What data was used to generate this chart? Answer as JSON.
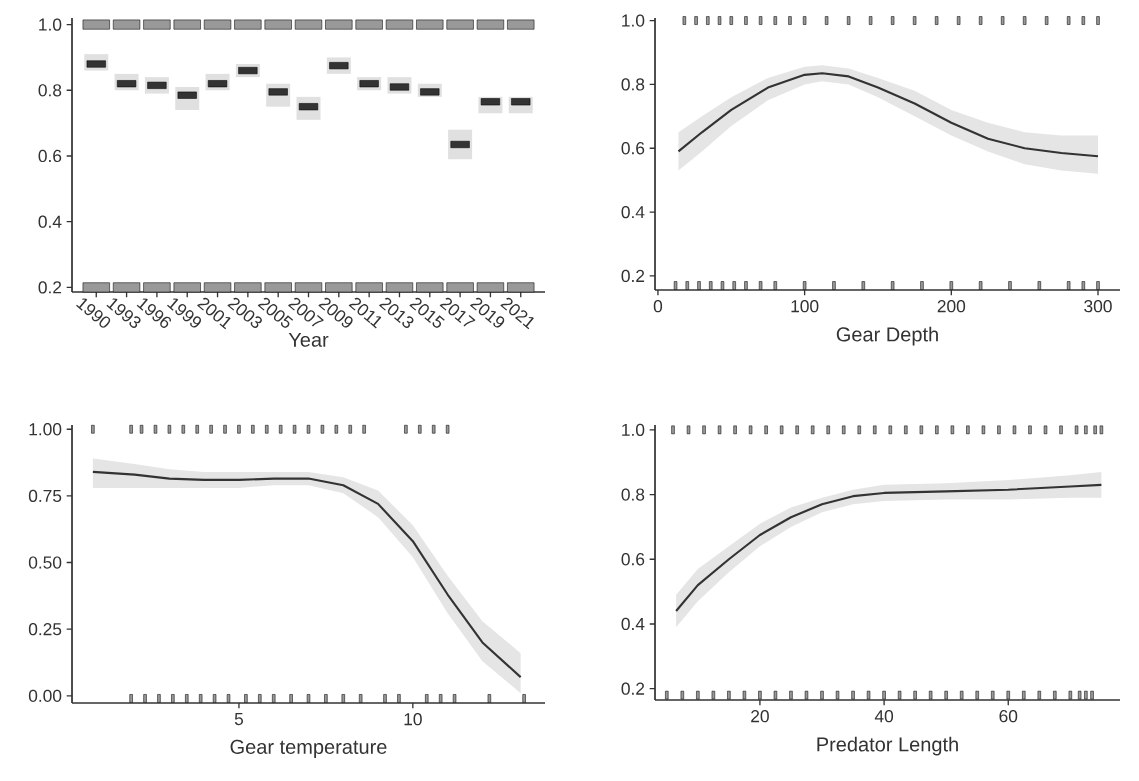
{
  "chart_data": [
    {
      "type": "scatter",
      "xlabel": "Year",
      "categories": [
        "1990",
        "1993",
        "1996",
        "1999",
        "2001",
        "2003",
        "2005",
        "2007",
        "2009",
        "2011",
        "2013",
        "2015",
        "2017",
        "2019",
        "2021"
      ],
      "ylim": [
        0.186,
        1.02
      ],
      "yticks": [
        {
          "value": 0.2,
          "label": "0.2"
        },
        {
          "value": 0.4,
          "label": "0.4"
        },
        {
          "value": 0.6,
          "label": "0.6"
        },
        {
          "value": 0.8,
          "label": "0.8"
        },
        {
          "value": 1,
          "label": "1.0"
        }
      ],
      "series": [
        {
          "color": "#333333",
          "values": [
            0.88,
            0.82,
            0.815,
            0.785,
            0.82,
            0.86,
            0.795,
            0.75,
            0.875,
            0.82,
            0.81,
            0.795,
            0.635,
            0.765,
            0.765
          ],
          "errors": [
            [
              0.86,
              0.91
            ],
            [
              0.8,
              0.85
            ],
            [
              0.79,
              0.84
            ],
            [
              0.74,
              0.81
            ],
            [
              0.8,
              0.85
            ],
            [
              0.84,
              0.88
            ],
            [
              0.75,
              0.82
            ],
            [
              0.71,
              0.78
            ],
            [
              0.85,
              0.9
            ],
            [
              0.8,
              0.84
            ],
            [
              0.79,
              0.84
            ],
            [
              0.78,
              0.82
            ],
            [
              0.59,
              0.68
            ],
            [
              0.73,
              0.78
            ],
            [
              0.73,
              0.78
            ]
          ]
        },
        {
          "type": "scatter",
          "color": "#999999",
          "values": [
            1,
            1,
            1,
            1,
            1,
            1,
            1,
            1,
            1,
            1,
            1,
            1,
            1,
            1,
            1
          ]
        },
        {
          "type": "scatter",
          "color": "#999999",
          "values": [
            0.2,
            0.2,
            0.2,
            0.2,
            0.2,
            0.2,
            0.2,
            0.2,
            0.2,
            0.2,
            0.2,
            0.2,
            0.2,
            0.2,
            0.2
          ]
        }
      ]
    },
    {
      "type": "line",
      "xlabel": "Gear Depth",
      "xlim": [
        -2,
        315
      ],
      "ylim": [
        0.156,
        1.008
      ],
      "xticks": [
        0,
        100,
        200,
        300
      ],
      "yticks": [
        {
          "value": 0.2,
          "label": "0.2"
        },
        {
          "value": 0.4,
          "label": "0.4"
        },
        {
          "value": 0.6,
          "label": "0.6"
        },
        {
          "value": 0.8,
          "label": "0.8"
        },
        {
          "value": 1,
          "label": "1.0"
        }
      ],
      "x": [
        14,
        30,
        50,
        75,
        100,
        112,
        130,
        150,
        175,
        200,
        225,
        250,
        275,
        300
      ],
      "series": [
        {
          "color": "#333333",
          "values": [
            0.59,
            0.65,
            0.72,
            0.79,
            0.83,
            0.835,
            0.825,
            0.79,
            0.74,
            0.68,
            0.63,
            0.6,
            0.585,
            0.575
          ],
          "lower": [
            0.53,
            0.59,
            0.67,
            0.75,
            0.8,
            0.81,
            0.8,
            0.76,
            0.7,
            0.64,
            0.59,
            0.55,
            0.53,
            0.52
          ],
          "upper": [
            0.65,
            0.7,
            0.76,
            0.82,
            0.855,
            0.86,
            0.85,
            0.82,
            0.78,
            0.72,
            0.68,
            0.65,
            0.64,
            0.64
          ]
        },
        {
          "type": "scatter",
          "color": "#999999",
          "x": [
            18,
            26,
            34,
            42,
            50,
            60,
            70,
            80,
            90,
            100,
            115,
            130,
            145,
            160,
            175,
            190,
            205,
            220,
            235,
            250,
            265,
            280,
            290,
            300
          ],
          "values": [
            1,
            1,
            1,
            1,
            1,
            1,
            1,
            1,
            1,
            1,
            1,
            1,
            1,
            1,
            1,
            1,
            1,
            1,
            1,
            1,
            1,
            1,
            1,
            1
          ]
        },
        {
          "type": "scatter",
          "color": "#999999",
          "x": [
            12,
            20,
            28,
            36,
            44,
            52,
            60,
            70,
            80,
            100,
            120,
            140,
            160,
            180,
            200,
            220,
            240,
            260,
            280,
            290,
            300
          ],
          "values": [
            0.17,
            0.17,
            0.17,
            0.17,
            0.17,
            0.17,
            0.17,
            0.17,
            0.17,
            0.17,
            0.17,
            0.17,
            0.17,
            0.17,
            0.17,
            0.17,
            0.17,
            0.17,
            0.17,
            0.17,
            0.17
          ]
        }
      ]
    },
    {
      "type": "line",
      "xlabel": "Gear temperature",
      "xlim": [
        0.2,
        13.8
      ],
      "ylim": [
        -0.027,
        1.016
      ],
      "xticks": [
        5,
        10
      ],
      "yticks": [
        {
          "value": 0,
          "label": "0.00"
        },
        {
          "value": 0.25,
          "label": "0.25"
        },
        {
          "value": 0.5,
          "label": "0.50"
        },
        {
          "value": 0.75,
          "label": "0.75"
        },
        {
          "value": 1,
          "label": "1.00"
        }
      ],
      "x": [
        0.8,
        2,
        3,
        4,
        5,
        6,
        7,
        8,
        9,
        10,
        11,
        12,
        13.1
      ],
      "series": [
        {
          "color": "#333333",
          "values": [
            0.84,
            0.83,
            0.815,
            0.81,
            0.81,
            0.815,
            0.815,
            0.79,
            0.72,
            0.58,
            0.38,
            0.2,
            0.07
          ],
          "lower": [
            0.78,
            0.78,
            0.78,
            0.78,
            0.78,
            0.79,
            0.79,
            0.76,
            0.67,
            0.52,
            0.31,
            0.13,
            0.01
          ],
          "upper": [
            0.89,
            0.87,
            0.85,
            0.84,
            0.84,
            0.84,
            0.84,
            0.82,
            0.77,
            0.64,
            0.45,
            0.28,
            0.16
          ]
        },
        {
          "type": "scatter",
          "color": "#999999",
          "x": [
            0.8,
            1.9,
            2.2,
            2.6,
            3.0,
            3.4,
            3.8,
            4.2,
            4.6,
            5.0,
            5.4,
            5.8,
            6.2,
            6.6,
            7.0,
            7.4,
            7.8,
            8.2,
            8.6,
            9.8,
            10.2,
            10.6,
            11.0
          ],
          "values": [
            1,
            1,
            1,
            1,
            1,
            1,
            1,
            1,
            1,
            1,
            1,
            1,
            1,
            1,
            1,
            1,
            1,
            1,
            1,
            1,
            1,
            1,
            1
          ]
        },
        {
          "type": "scatter",
          "color": "#999999",
          "x": [
            1.9,
            2.3,
            2.7,
            3.1,
            3.5,
            3.9,
            4.3,
            4.7,
            5.2,
            5.6,
            6.0,
            6.5,
            7.0,
            7.5,
            8.0,
            8.5,
            9.2,
            9.6,
            10.4,
            10.8,
            11.2,
            12.2,
            13.2
          ],
          "values": [
            -0.01,
            -0.01,
            -0.01,
            -0.01,
            -0.01,
            -0.01,
            -0.01,
            -0.01,
            -0.01,
            -0.01,
            -0.01,
            -0.01,
            -0.01,
            -0.01,
            -0.01,
            -0.01,
            -0.01,
            -0.01,
            -0.01,
            -0.01,
            -0.01,
            -0.01,
            -0.01
          ]
        }
      ]
    },
    {
      "type": "line",
      "xlabel": "Predator Length",
      "xlim": [
        3.1,
        78
      ],
      "ylim": [
        0.165,
        1.015
      ],
      "xticks": [
        20,
        40,
        60
      ],
      "yticks": [
        {
          "value": 0.2,
          "label": "0.2"
        },
        {
          "value": 0.4,
          "label": "0.4"
        },
        {
          "value": 0.6,
          "label": "0.6"
        },
        {
          "value": 0.8,
          "label": "0.8"
        },
        {
          "value": 1,
          "label": "1.0"
        }
      ],
      "x": [
        6.5,
        10,
        15,
        20,
        25,
        30,
        35,
        40,
        50,
        60,
        70,
        75
      ],
      "series": [
        {
          "color": "#333333",
          "values": [
            0.44,
            0.52,
            0.6,
            0.675,
            0.73,
            0.77,
            0.795,
            0.805,
            0.81,
            0.815,
            0.825,
            0.83
          ],
          "lower": [
            0.39,
            0.47,
            0.56,
            0.64,
            0.7,
            0.745,
            0.77,
            0.78,
            0.785,
            0.785,
            0.79,
            0.79
          ],
          "upper": [
            0.49,
            0.57,
            0.64,
            0.71,
            0.76,
            0.79,
            0.815,
            0.83,
            0.835,
            0.845,
            0.86,
            0.87
          ]
        },
        {
          "type": "scatter",
          "color": "#999999",
          "x": [
            6,
            8.5,
            11,
            13.5,
            16,
            18.5,
            21,
            23.5,
            26,
            28.5,
            31,
            33.5,
            36,
            38.5,
            41,
            43.5,
            46,
            48.5,
            51,
            53.5,
            56,
            58.5,
            61,
            63.5,
            66,
            68.5,
            71,
            72.5,
            74,
            75
          ],
          "values": [
            1,
            1,
            1,
            1,
            1,
            1,
            1,
            1,
            1,
            1,
            1,
            1,
            1,
            1,
            1,
            1,
            1,
            1,
            1,
            1,
            1,
            1,
            1,
            1,
            1,
            1,
            1,
            1,
            1,
            1
          ]
        },
        {
          "type": "scatter",
          "color": "#999999",
          "x": [
            5,
            7.5,
            10,
            12.5,
            15,
            17.5,
            20,
            22.5,
            25,
            27.5,
            30,
            32.5,
            35,
            37.5,
            40,
            42.5,
            45,
            47.5,
            50,
            52.5,
            55,
            57.5,
            60,
            62.5,
            65,
            67.5,
            70,
            71.5,
            72.5,
            73.5
          ],
          "values": [
            0.18,
            0.18,
            0.18,
            0.18,
            0.18,
            0.18,
            0.18,
            0.18,
            0.18,
            0.18,
            0.18,
            0.18,
            0.18,
            0.18,
            0.18,
            0.18,
            0.18,
            0.18,
            0.18,
            0.18,
            0.18,
            0.18,
            0.18,
            0.18,
            0.18,
            0.18,
            0.18,
            0.18,
            0.18,
            0.18
          ]
        }
      ]
    }
  ]
}
